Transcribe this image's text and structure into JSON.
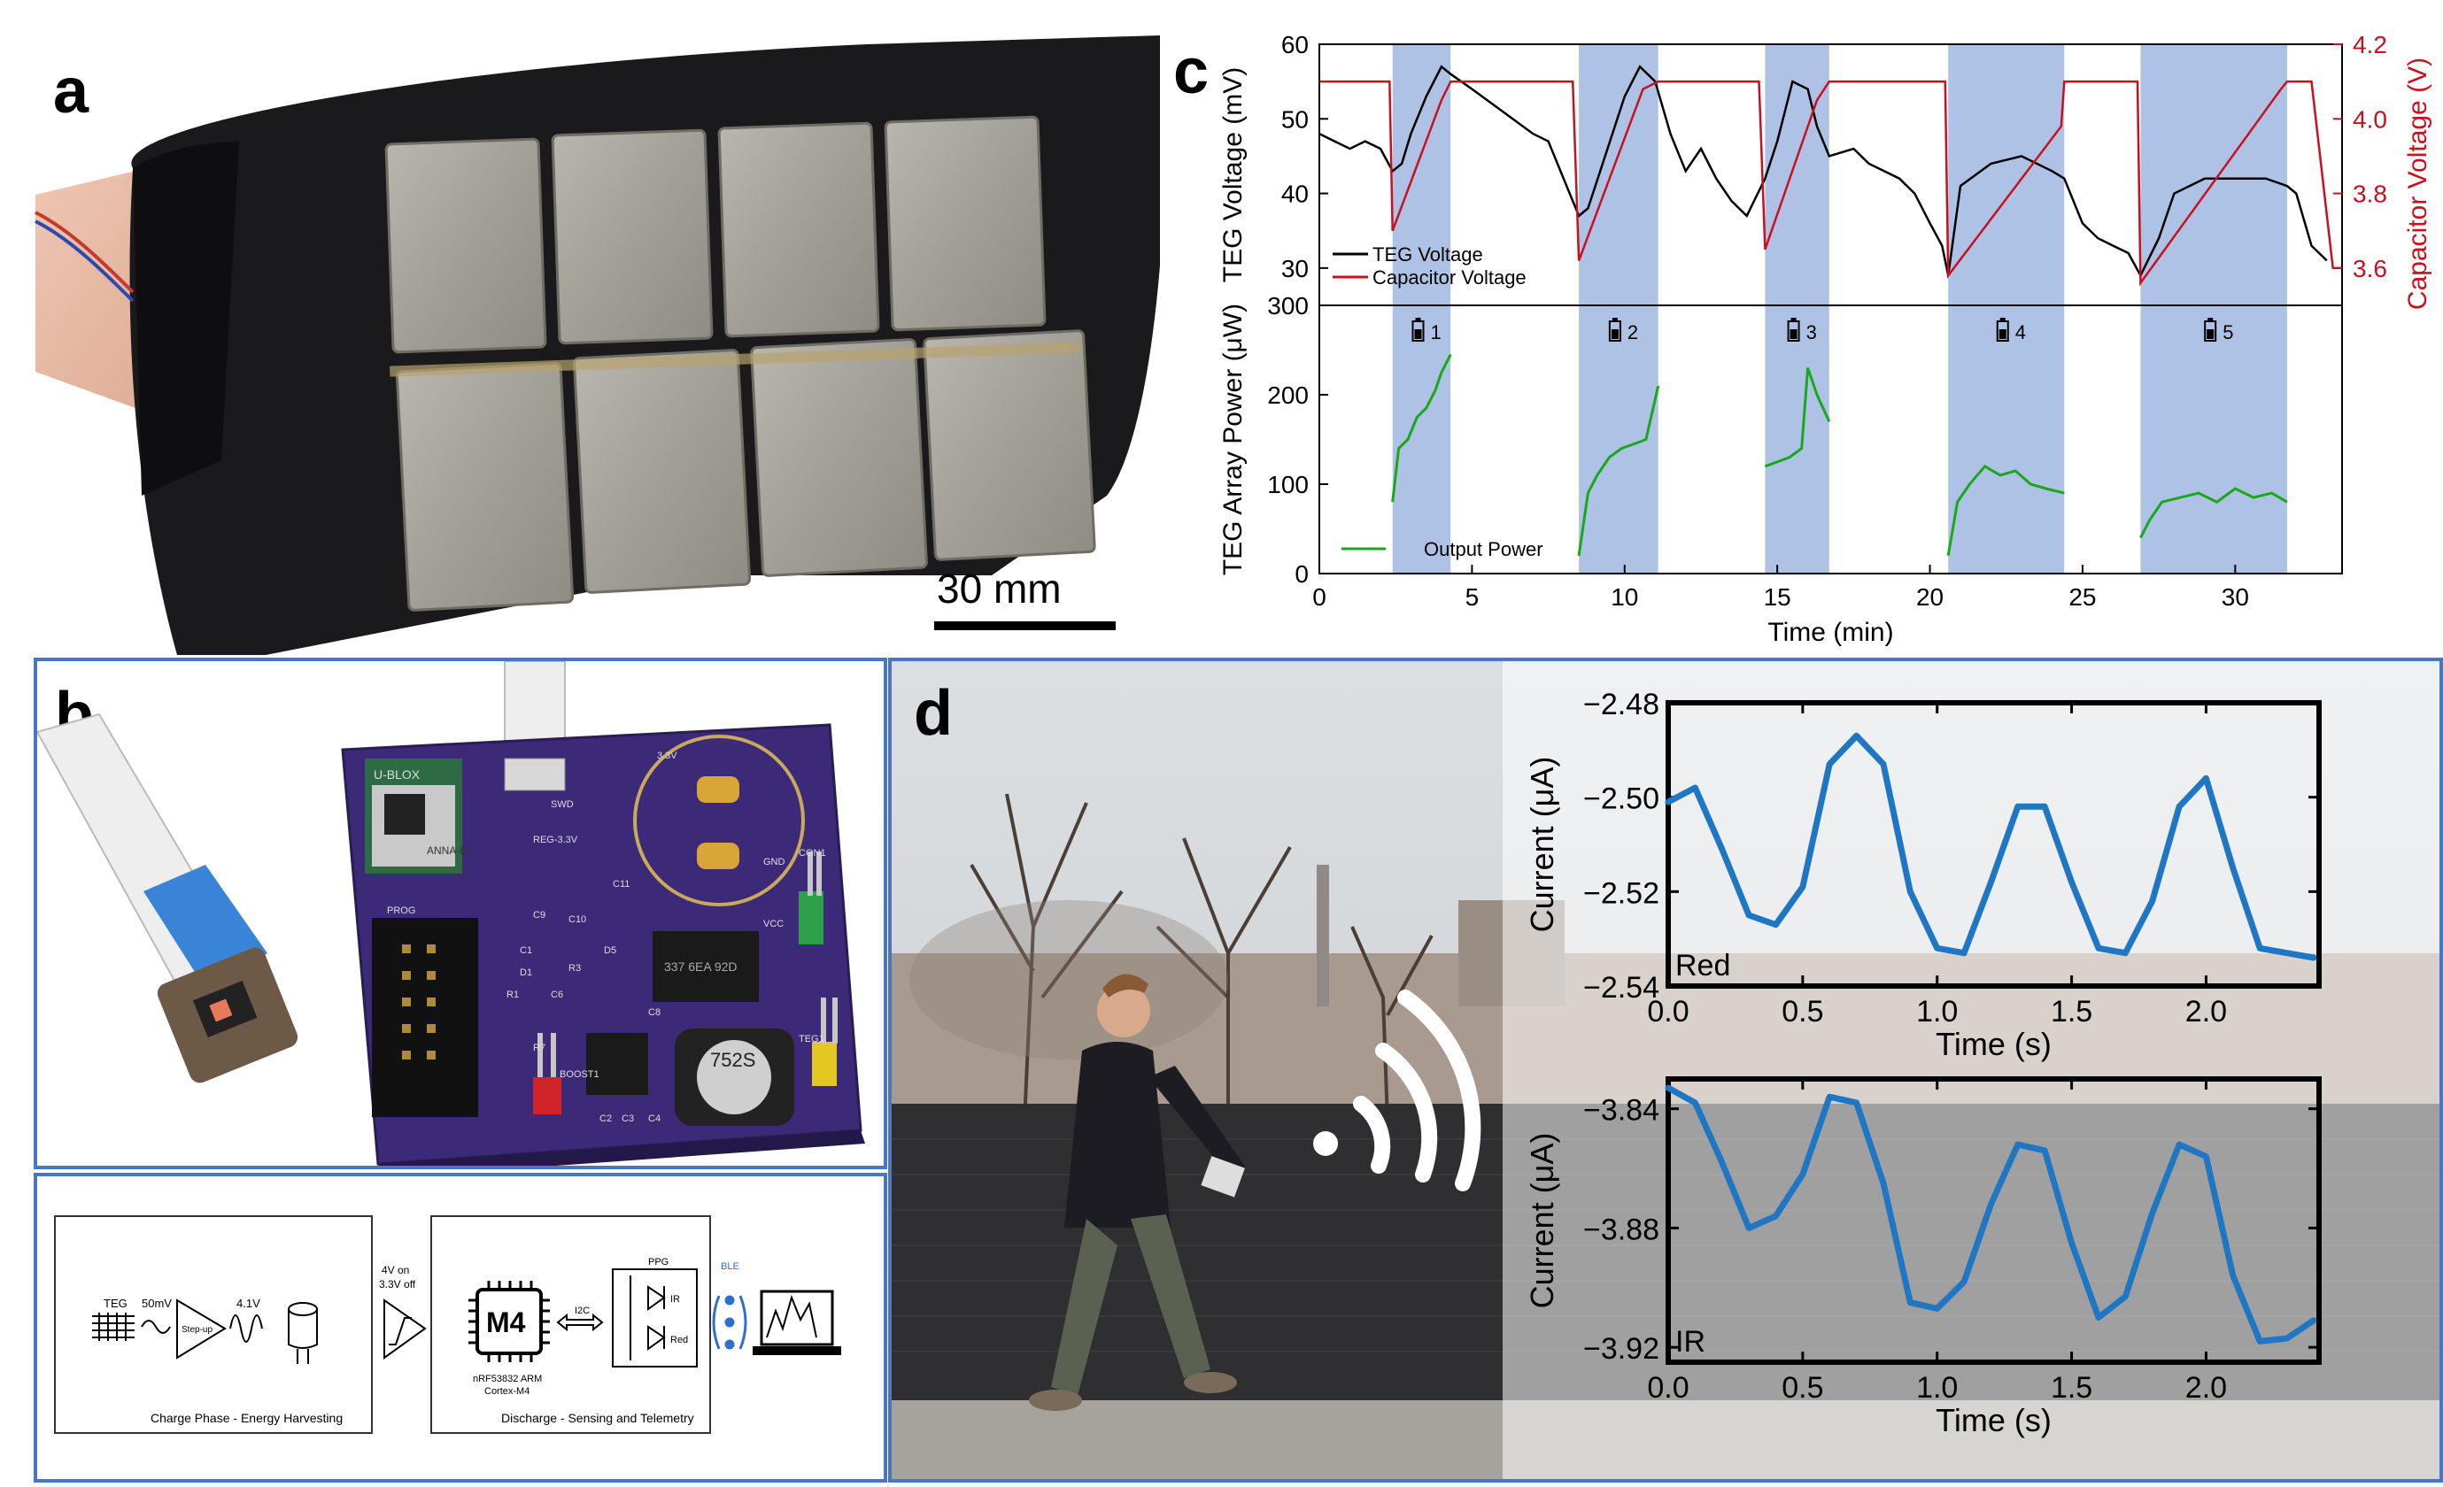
{
  "panels": {
    "a": {
      "letter": "a",
      "scale_bar": "30 mm"
    },
    "b": {
      "letter": "b"
    },
    "c": {
      "letter": "c"
    },
    "d": {
      "letter": "d"
    }
  },
  "board": {
    "ublox": "U-BLOX",
    "module": "ANNA-B1",
    "pcb_labels": [
      "REG-3.3V",
      "BOOST1",
      "R7",
      "D1",
      "C8",
      "C9",
      "C10",
      "C11",
      "C1",
      "C2",
      "C3",
      "C4",
      "C6",
      "D5",
      "R1",
      "R3",
      "TEG1",
      "CON1",
      "SWD",
      "PROG",
      "3.3V",
      "GND",
      "VCC"
    ],
    "inductor": "752S",
    "capacitor": "337 6EA 92D"
  },
  "diagram": {
    "teg": "TEG",
    "mv": "50mV",
    "stepup": "Step-up",
    "v41": "4.1V",
    "switch_top": "4V on",
    "switch_bottom": "3.3V off",
    "mcu": "M4",
    "i2c": "I2C",
    "ppg": "PPG",
    "ir": "IR",
    "red": "Red",
    "ble": "BLE",
    "mcu_line1": "nRF53832 ARM",
    "mcu_line2": "Cortex-M4",
    "charge_caption": "Charge Phase - Energy Harvesting",
    "discharge_caption": "Discharge - Sensing and Telemetry"
  },
  "colors": {
    "teg_voltage": "#000000",
    "capacitor_voltage": "#c8101e",
    "output_power": "#18a818",
    "discharge_band": "#aec2e6",
    "ppg_line": "#1f77c4",
    "panel_border": "#4a74c4"
  },
  "chart_data": [
    {
      "id": "c_top",
      "type": "line",
      "ylabel": "TEG  Voltage (mV)",
      "y2label": "Capacitor Voltage (V)",
      "ylim": [
        25,
        60
      ],
      "y2lim": [
        3.5,
        4.2
      ],
      "yticks": [
        30,
        40,
        50,
        60
      ],
      "y2ticks": [
        3.6,
        3.8,
        4.0,
        4.2
      ],
      "xlim": [
        0,
        33.5
      ],
      "shaded_intervals": [
        [
          2.4,
          4.3
        ],
        [
          8.5,
          11.1
        ],
        [
          14.6,
          16.7
        ],
        [
          20.6,
          24.4
        ],
        [
          26.9,
          31.7
        ]
      ],
      "legend": [
        "TEG Voltage",
        "Capacitor Voltage"
      ],
      "series": [
        {
          "name": "TEG Voltage",
          "x": [
            0,
            0.5,
            1,
            1.5,
            2,
            2.4,
            2.7,
            3,
            3.5,
            4,
            4.3,
            5,
            6,
            7,
            7.5,
            8,
            8.5,
            8.8,
            9.2,
            9.6,
            10,
            10.5,
            11,
            11.5,
            12,
            12.5,
            13,
            13.5,
            14,
            14.6,
            15,
            15.5,
            16,
            16.3,
            16.7,
            17.5,
            18,
            19,
            19.5,
            20,
            20.4,
            20.6,
            21,
            22,
            23,
            24,
            24.4,
            25,
            25.5,
            26,
            26.5,
            26.9,
            27.5,
            28,
            29,
            30,
            31,
            31.7,
            32,
            32.5,
            33
          ],
          "y": [
            48,
            47,
            46,
            47,
            46,
            43,
            44,
            48,
            53,
            57,
            56,
            54,
            51,
            48,
            47,
            42,
            37,
            38,
            43,
            48,
            53,
            57,
            55,
            48,
            43,
            46,
            42,
            39,
            37,
            42,
            47,
            55,
            54,
            49,
            45,
            46,
            44,
            42,
            40,
            36,
            33,
            29,
            41,
            44,
            45,
            43,
            42,
            36,
            34,
            33,
            32,
            29,
            34,
            40,
            42,
            42,
            42,
            41,
            40,
            33,
            31
          ]
        },
        {
          "name": "Capacitor Voltage",
          "x": [
            0,
            2.3,
            2.4,
            4.0,
            4.3,
            8.3,
            8.5,
            10.6,
            11.1,
            14.4,
            14.6,
            16.3,
            16.7,
            20.5,
            20.6,
            24.3,
            24.4,
            26.8,
            26.9,
            31.5,
            31.7,
            32.0,
            32.5,
            33.2,
            33.5
          ],
          "y": [
            4.1,
            4.1,
            3.7,
            4.05,
            4.1,
            4.1,
            3.62,
            4.08,
            4.1,
            4.1,
            3.65,
            4.05,
            4.1,
            4.1,
            3.58,
            3.98,
            4.1,
            4.1,
            3.56,
            4.08,
            4.1,
            4.1,
            4.1,
            3.6,
            3.6
          ]
        }
      ]
    },
    {
      "id": "c_bottom",
      "type": "line",
      "xlabel": "Time (min)",
      "ylabel": "TEG Array Power (μW)",
      "ylim": [
        0,
        300
      ],
      "yticks": [
        0,
        100,
        200,
        300
      ],
      "xticks": [
        0,
        5,
        10,
        15,
        20,
        25,
        30
      ],
      "xlim": [
        0,
        33.5
      ],
      "shaded_intervals": [
        [
          2.4,
          4.3
        ],
        [
          8.5,
          11.1
        ],
        [
          14.6,
          16.7
        ],
        [
          20.6,
          24.4
        ],
        [
          26.9,
          31.7
        ]
      ],
      "cycle_labels": [
        "1",
        "2",
        "3",
        "4",
        "5"
      ],
      "legend": [
        "Output Power"
      ],
      "series": [
        {
          "name": "Output Power",
          "segments": [
            {
              "x": [
                2.4,
                2.6,
                2.9,
                3.2,
                3.5,
                3.8,
                4.0,
                4.3
              ],
              "y": [
                80,
                140,
                150,
                175,
                185,
                205,
                225,
                245
              ]
            },
            {
              "x": [
                8.5,
                8.8,
                9.1,
                9.5,
                9.9,
                10.3,
                10.7,
                11.1
              ],
              "y": [
                20,
                90,
                110,
                130,
                140,
                145,
                150,
                210
              ]
            },
            {
              "x": [
                14.6,
                15.0,
                15.4,
                15.8,
                16.0,
                16.3,
                16.7
              ],
              "y": [
                120,
                125,
                130,
                140,
                230,
                200,
                170
              ]
            },
            {
              "x": [
                20.6,
                20.9,
                21.3,
                21.8,
                22.3,
                22.8,
                23.3,
                23.8,
                24.4
              ],
              "y": [
                20,
                80,
                100,
                120,
                110,
                115,
                100,
                95,
                90
              ]
            },
            {
              "x": [
                26.9,
                27.2,
                27.6,
                28.2,
                28.8,
                29.4,
                30.0,
                30.6,
                31.2,
                31.7
              ],
              "y": [
                40,
                60,
                80,
                85,
                90,
                80,
                95,
                85,
                90,
                80
              ]
            }
          ]
        }
      ]
    },
    {
      "id": "d_red",
      "type": "line",
      "xlabel": "Time (s)",
      "ylabel": "Current (μA)",
      "annotation": "Red",
      "ylim": [
        -2.54,
        -2.48
      ],
      "yticks": [
        -2.48,
        -2.5,
        -2.52,
        -2.54
      ],
      "ytick_labels": [
        "−2.48",
        "−2.50",
        "−2.52",
        "−2.54"
      ],
      "xlim": [
        0,
        2.42
      ],
      "xticks": [
        0.0,
        0.5,
        1.0,
        1.5,
        2.0
      ],
      "xtick_labels": [
        "0.0",
        "0.5",
        "1.0",
        "1.5",
        "2.0"
      ],
      "series": [
        {
          "name": "",
          "x": [
            0,
            0.1,
            0.2,
            0.3,
            0.4,
            0.5,
            0.6,
            0.7,
            0.8,
            0.9,
            1.0,
            1.1,
            1.2,
            1.3,
            1.4,
            1.5,
            1.6,
            1.7,
            1.8,
            1.9,
            2.0,
            2.1,
            2.2,
            2.3,
            2.4
          ],
          "y": [
            -2.501,
            -2.498,
            -2.511,
            -2.525,
            -2.527,
            -2.519,
            -2.493,
            -2.487,
            -2.493,
            -2.52,
            -2.532,
            -2.533,
            -2.518,
            -2.502,
            -2.502,
            -2.518,
            -2.532,
            -2.533,
            -2.522,
            -2.502,
            -2.496,
            -2.515,
            -2.532,
            -2.533,
            -2.534
          ]
        }
      ]
    },
    {
      "id": "d_ir",
      "type": "line",
      "xlabel": "Time (s)",
      "ylabel": "Current (μA)",
      "annotation": "IR",
      "ylim": [
        -3.925,
        -3.83
      ],
      "yticks": [
        -3.84,
        -3.88,
        -3.92
      ],
      "ytick_labels": [
        "−3.84",
        "−3.88",
        "−3.92"
      ],
      "xlim": [
        0,
        2.42
      ],
      "xticks": [
        0.0,
        0.5,
        1.0,
        1.5,
        2.0
      ],
      "xtick_labels": [
        "0.0",
        "0.5",
        "1.0",
        "1.5",
        "2.0"
      ],
      "series": [
        {
          "name": "",
          "x": [
            0,
            0.1,
            0.2,
            0.3,
            0.4,
            0.5,
            0.6,
            0.7,
            0.8,
            0.9,
            1.0,
            1.1,
            1.2,
            1.3,
            1.4,
            1.5,
            1.6,
            1.7,
            1.8,
            1.9,
            2.0,
            2.1,
            2.2,
            2.3,
            2.4
          ],
          "y": [
            -3.833,
            -3.838,
            -3.858,
            -3.88,
            -3.876,
            -3.862,
            -3.836,
            -3.838,
            -3.865,
            -3.905,
            -3.907,
            -3.898,
            -3.872,
            -3.852,
            -3.854,
            -3.885,
            -3.91,
            -3.903,
            -3.875,
            -3.852,
            -3.856,
            -3.896,
            -3.918,
            -3.917,
            -3.911
          ]
        }
      ]
    }
  ]
}
